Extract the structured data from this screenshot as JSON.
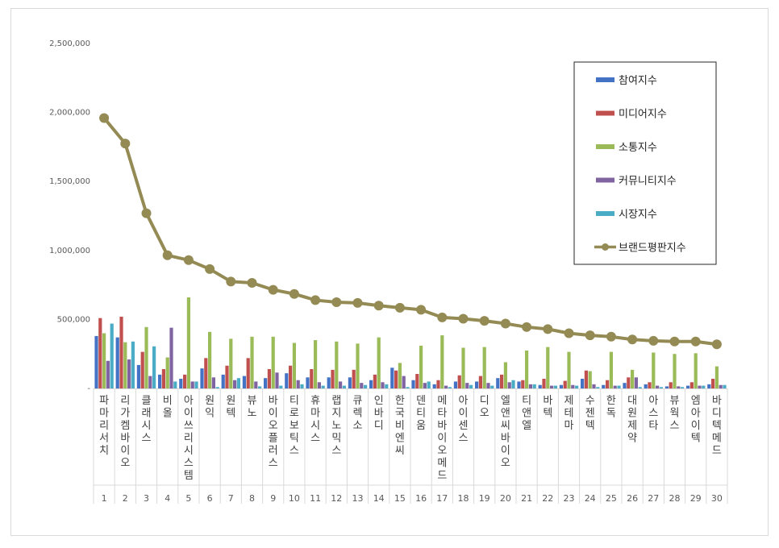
{
  "chart_data": {
    "type": "bar",
    "title": "",
    "xlabel": "",
    "ylabel": "",
    "ylim": [
      0,
      2500000
    ],
    "yticks": [
      0,
      500000,
      1000000,
      1500000,
      2000000,
      2500000
    ],
    "ytick_labels": [
      "-",
      "500,000",
      "1,000,000",
      "1,500,000",
      "2,000,000",
      "2,500,000"
    ],
    "grid": false,
    "legend_position": "top-right",
    "ranks": [
      "1",
      "2",
      "3",
      "4",
      "5",
      "6",
      "7",
      "8",
      "9",
      "10",
      "11",
      "12",
      "13",
      "14",
      "15",
      "16",
      "17",
      "18",
      "19",
      "20",
      "21",
      "22",
      "23",
      "24",
      "25",
      "26",
      "27",
      "28",
      "29",
      "30"
    ],
    "categories": [
      "파마리서치",
      "리가켐바이오",
      "클래시스",
      "비올",
      "아이쓰리시스템",
      "원익",
      "원텍",
      "뷰노",
      "바이오플러스",
      "티로보틱스",
      "휴마시스",
      "랩지노믹스",
      "큐렉소",
      "인바디",
      "한국비엔씨",
      "덴티움",
      "메타바이오메드",
      "아이센스",
      "디오",
      "엘앤씨바이오",
      "티앤엘",
      "바텍",
      "제테마",
      "수젠텍",
      "한독",
      "대원제약",
      "아스타",
      "뷰웍스",
      "엠아이텍",
      "바디텍메드"
    ],
    "series": [
      {
        "name": "참여지수",
        "kind": "bar",
        "color": "#4472c4",
        "values": [
          380000,
          370000,
          170000,
          100000,
          70000,
          145000,
          100000,
          90000,
          75000,
          110000,
          80000,
          80000,
          80000,
          60000,
          150000,
          60000,
          30000,
          50000,
          50000,
          75000,
          50000,
          25000,
          25000,
          70000,
          25000,
          40000,
          30000,
          15000,
          20000,
          30000
        ]
      },
      {
        "name": "미디어지수",
        "kind": "bar",
        "color": "#c0504d",
        "values": [
          510000,
          520000,
          265000,
          140000,
          100000,
          220000,
          165000,
          220000,
          140000,
          165000,
          140000,
          135000,
          135000,
          100000,
          130000,
          105000,
          60000,
          95000,
          90000,
          100000,
          60000,
          70000,
          55000,
          130000,
          60000,
          80000,
          45000,
          45000,
          45000,
          70000
        ]
      },
      {
        "name": "소통지수",
        "kind": "bar",
        "color": "#9bbb59",
        "values": [
          400000,
          335000,
          445000,
          225000,
          660000,
          410000,
          360000,
          375000,
          375000,
          330000,
          350000,
          340000,
          325000,
          370000,
          185000,
          310000,
          385000,
          295000,
          300000,
          190000,
          275000,
          300000,
          265000,
          125000,
          265000,
          135000,
          260000,
          250000,
          255000,
          160000
        ]
      },
      {
        "name": "커뮤니티지수",
        "kind": "bar",
        "color": "#8064a2",
        "values": [
          200000,
          210000,
          90000,
          440000,
          50000,
          80000,
          60000,
          50000,
          115000,
          60000,
          45000,
          50000,
          40000,
          45000,
          90000,
          40000,
          20000,
          40000,
          40000,
          45000,
          30000,
          20000,
          25000,
          30000,
          20000,
          80000,
          20000,
          15000,
          20000,
          25000
        ]
      },
      {
        "name": "시장지수",
        "kind": "bar",
        "color": "#4bacc6",
        "values": [
          470000,
          340000,
          305000,
          50000,
          50000,
          10000,
          75000,
          15000,
          20000,
          30000,
          20000,
          20000,
          25000,
          30000,
          10000,
          50000,
          10000,
          25000,
          20000,
          60000,
          30000,
          20000,
          20000,
          10000,
          20000,
          10000,
          10000,
          10000,
          20000,
          25000
        ]
      },
      {
        "name": "브랜드평판지수",
        "kind": "line",
        "color": "#948a54",
        "values": [
          1960000,
          1775000,
          1270000,
          965000,
          930000,
          865000,
          775000,
          765000,
          715000,
          685000,
          640000,
          625000,
          620000,
          600000,
          585000,
          570000,
          515000,
          505000,
          490000,
          470000,
          445000,
          430000,
          400000,
          385000,
          375000,
          355000,
          345000,
          340000,
          340000,
          320000
        ]
      }
    ]
  }
}
